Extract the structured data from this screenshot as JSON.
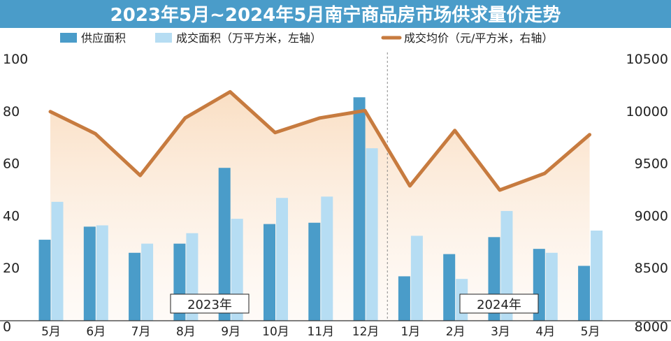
{
  "chart_data": {
    "type": "bar+line",
    "title": "2023年5月~2024年5月南宁商品房市场供求量价走势",
    "categories": [
      "5月",
      "6月",
      "7月",
      "8月",
      "9月",
      "10月",
      "11月",
      "12月",
      "1月",
      "2月",
      "3月",
      "4月",
      "5月"
    ],
    "series": [
      {
        "name": "供应面积",
        "type": "bar",
        "axis": "left",
        "color": "#4a9cc9",
        "values": [
          31,
          36,
          26,
          29.5,
          58.5,
          37,
          37.5,
          85.5,
          17,
          25.5,
          32,
          27.5,
          21
        ]
      },
      {
        "name": "成交面积（万平方米，左轴）",
        "type": "bar",
        "axis": "left",
        "color": "#b6ddf3",
        "values": [
          45.5,
          36.5,
          29.5,
          33.5,
          39,
          47,
          47.5,
          66,
          32.5,
          16,
          42,
          26,
          34.5
        ]
      },
      {
        "name": "成交均价（元/平方米，右轴）",
        "type": "line",
        "axis": "right",
        "color": "#c77b3f",
        "values": [
          10000,
          9790,
          9390,
          9940,
          10190,
          9800,
          9940,
          10010,
          9290,
          9820,
          9250,
          9410,
          9780
        ]
      }
    ],
    "left_axis": {
      "min": 0,
      "max": 100,
      "ticks": [
        "0",
        "20",
        "40",
        "60",
        "80",
        "100"
      ]
    },
    "right_axis": {
      "min": 8000,
      "max": 10500,
      "ticks": [
        "8000",
        "8500",
        "9000",
        "9500",
        "10000",
        "10500"
      ]
    },
    "year_labels": [
      "2023年",
      "2024年"
    ],
    "year_split_after_index": 7,
    "grid": false
  },
  "colors": {
    "title_band": "#4a9cc9",
    "title_text": "#ffffff",
    "supply": "#4a9cc9",
    "deal": "#b6ddf3",
    "price": "#c77b3f",
    "area_fill": "#fbe3cc",
    "axis": "#333333"
  }
}
